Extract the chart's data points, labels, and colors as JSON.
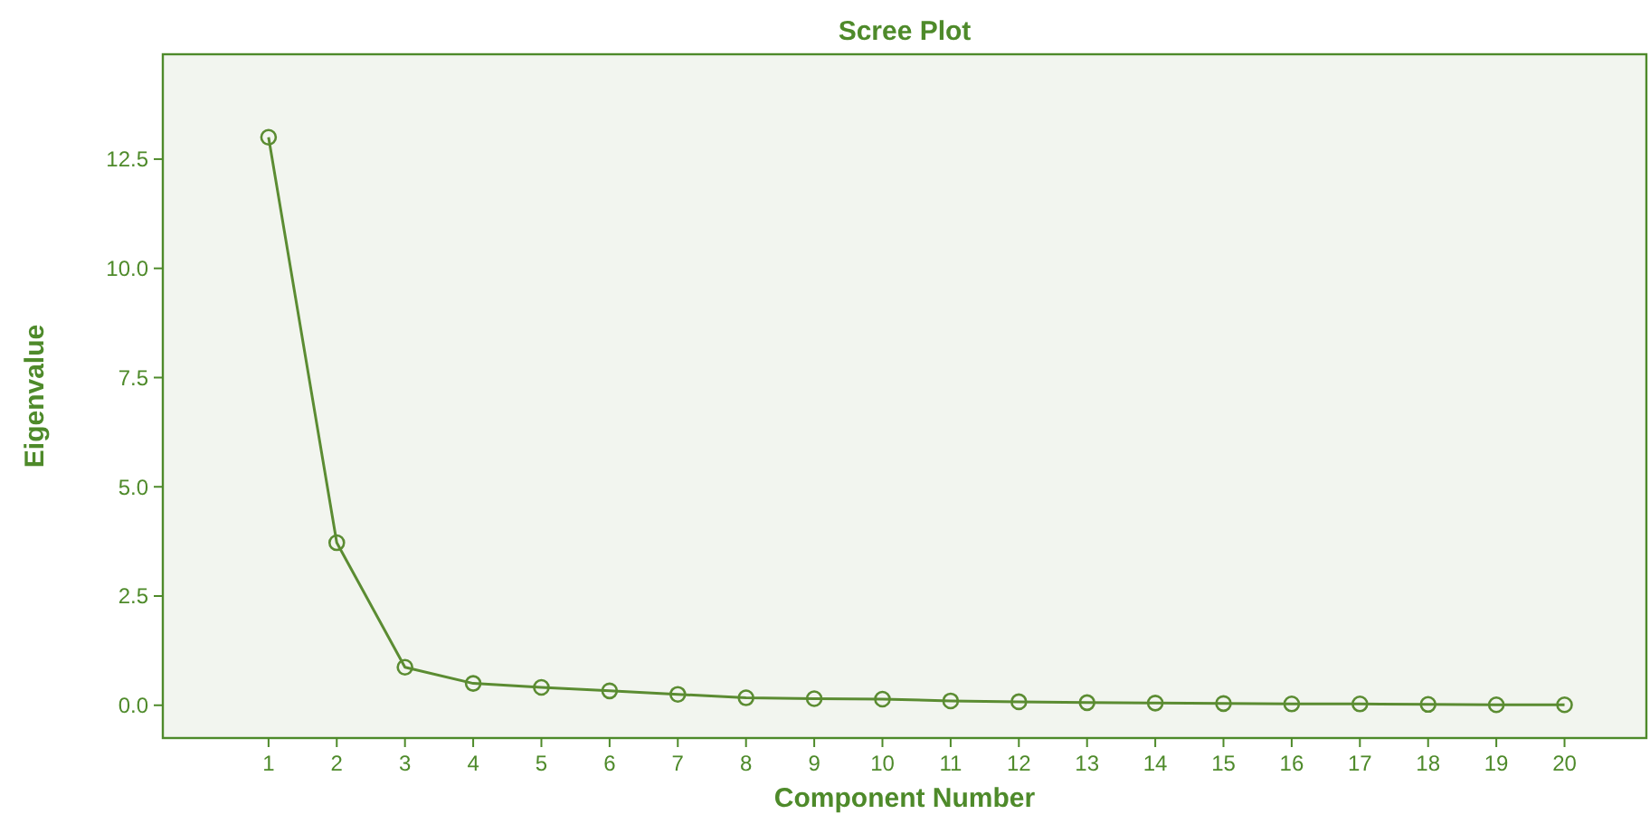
{
  "chart_data": {
    "type": "line",
    "title": "Scree Plot",
    "xlabel": "Component Number",
    "ylabel": "Eigenvalue",
    "x": [
      1,
      2,
      3,
      4,
      5,
      6,
      7,
      8,
      9,
      10,
      11,
      12,
      13,
      14,
      15,
      16,
      17,
      18,
      19,
      20
    ],
    "series": [
      {
        "color": "#5b8c32",
        "values": [
          13.0,
          3.72,
          0.87,
          0.5,
          0.41,
          0.33,
          0.25,
          0.17,
          0.15,
          0.14,
          0.1,
          0.08,
          0.06,
          0.05,
          0.04,
          0.03,
          0.03,
          0.02,
          0.01,
          0.01
        ]
      }
    ],
    "xlim": [
      -0.55,
      21.2
    ],
    "xticks": [
      1,
      2,
      3,
      4,
      5,
      6,
      7,
      8,
      9,
      10,
      11,
      12,
      13,
      14,
      15,
      16,
      17,
      18,
      19,
      20
    ],
    "ylim": [
      -0.75,
      14.9
    ],
    "yticks": [
      {
        "value": 0,
        "label": "0.0"
      },
      {
        "value": 2.5,
        "label": "2.5"
      },
      {
        "value": 5,
        "label": "5.0"
      },
      {
        "value": 7.5,
        "label": "7.5"
      },
      {
        "value": 10,
        "label": "10.0"
      },
      {
        "value": 12.5,
        "label": "12.5"
      }
    ],
    "marker": "circle",
    "line_style": "solid",
    "grid": false
  }
}
